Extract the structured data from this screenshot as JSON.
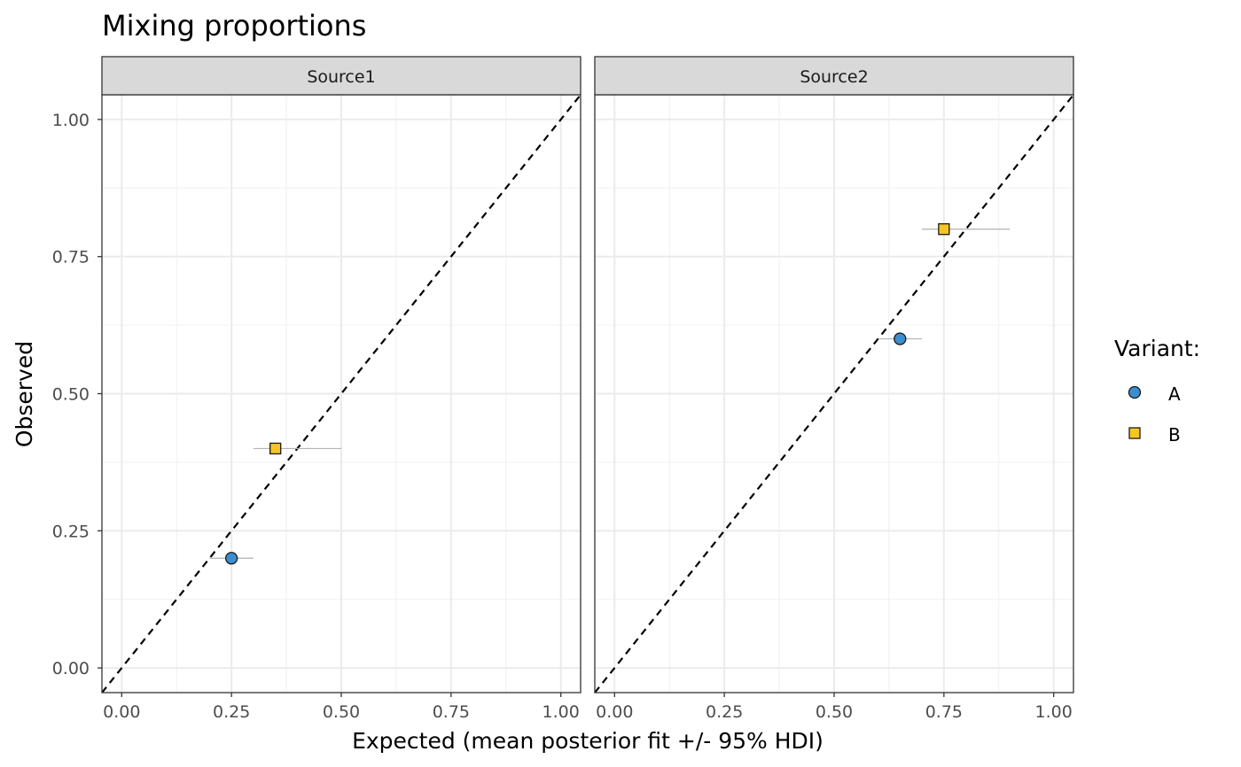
{
  "chart_data": {
    "type": "scatter",
    "title": "Mixing proportions",
    "xlabel": "Expected (mean posterior fit +/- 95% HDI)",
    "ylabel": "Observed",
    "xlim": [
      -0.045,
      1.045
    ],
    "ylim": [
      -0.045,
      1.045
    ],
    "x_ticks": [
      "0.00",
      "0.25",
      "0.50",
      "0.75",
      "1.00"
    ],
    "y_ticks": [
      "0.00",
      "0.25",
      "0.50",
      "0.75",
      "1.00"
    ],
    "grid": true,
    "reference_line": "y = x (dashed)",
    "legend": {
      "title": "Variant:",
      "position": "right",
      "entries": [
        {
          "label": "A",
          "shape": "circle",
          "color": "#3B8ED0"
        },
        {
          "label": "B",
          "shape": "square",
          "color": "#F5C524"
        }
      ]
    },
    "facets": [
      {
        "label": "Source1",
        "points": [
          {
            "variant": "A",
            "x": 0.25,
            "y": 0.2,
            "x_lo": 0.2,
            "x_hi": 0.3
          },
          {
            "variant": "B",
            "x": 0.35,
            "y": 0.4,
            "x_lo": 0.3,
            "x_hi": 0.5
          }
        ]
      },
      {
        "label": "Source2",
        "points": [
          {
            "variant": "A",
            "x": 0.65,
            "y": 0.6,
            "x_lo": 0.6,
            "x_hi": 0.7
          },
          {
            "variant": "B",
            "x": 0.75,
            "y": 0.8,
            "x_lo": 0.7,
            "x_hi": 0.9
          }
        ]
      }
    ]
  }
}
